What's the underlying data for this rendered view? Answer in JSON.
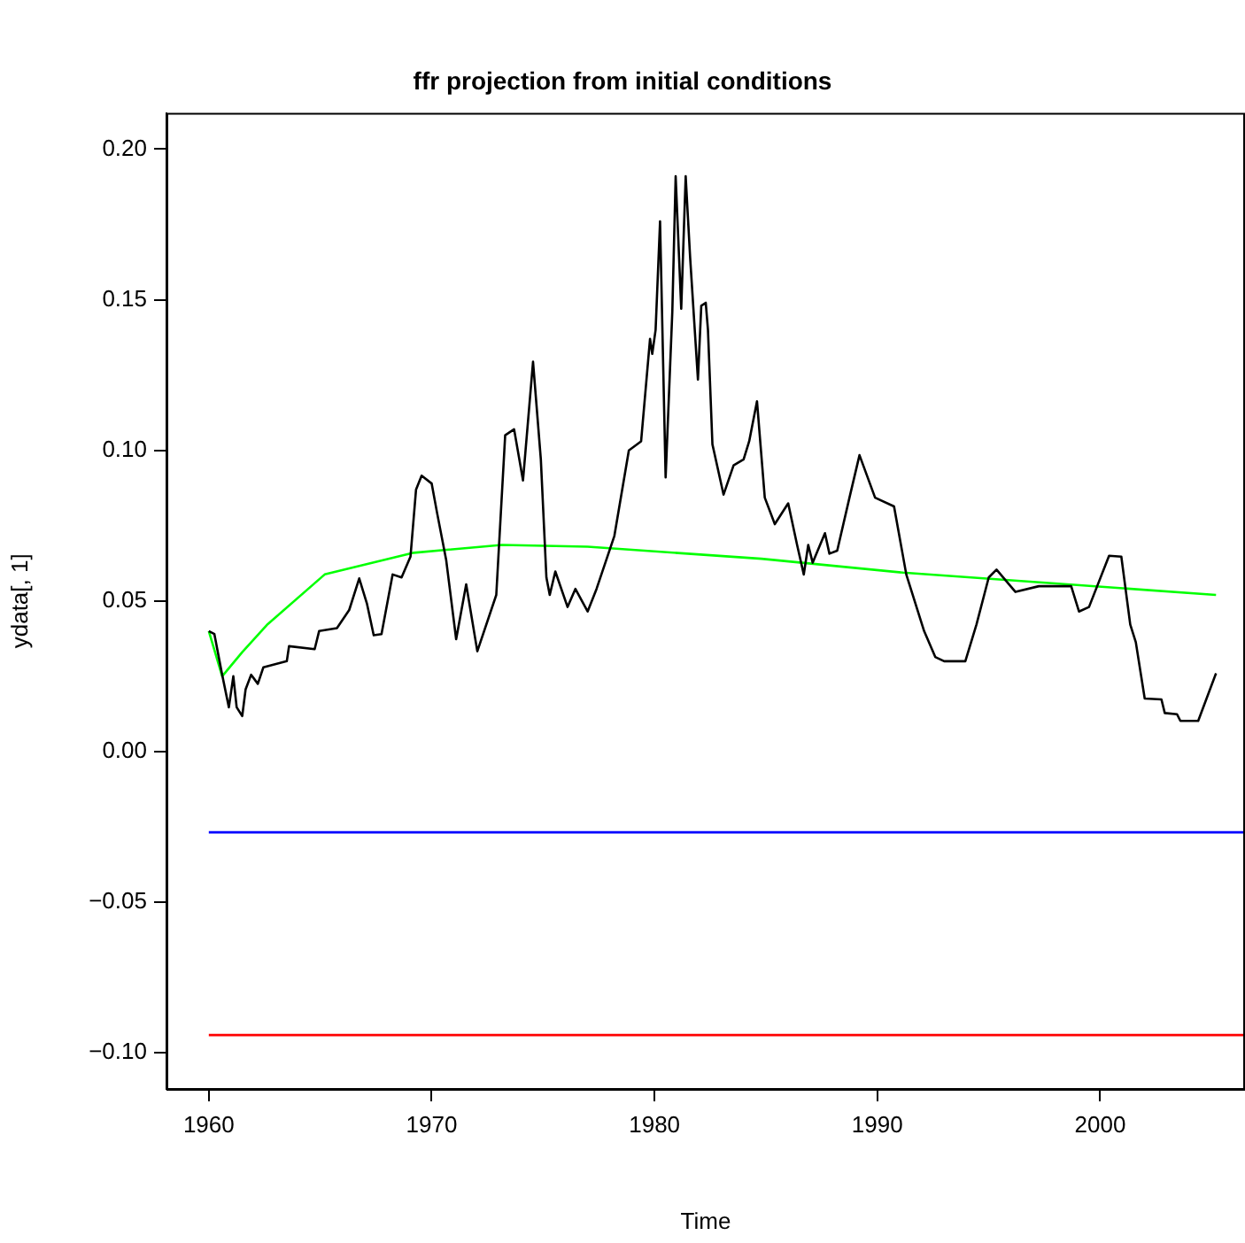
{
  "chart_data": {
    "type": "line",
    "title": "ffr projection from initial conditions",
    "xlabel": "Time",
    "ylabel": "ydata[, 1]",
    "xlim": [
      1958.1,
      2006.5
    ],
    "xticks": [
      1960,
      1970,
      1980,
      1990,
      2000
    ],
    "ylim": [
      -0.112,
      0.212
    ],
    "yticks": [
      {
        "value": -0.1,
        "label": "−0.10"
      },
      {
        "value": -0.05,
        "label": "−0.05"
      },
      {
        "value": 0,
        "label": "0.00"
      },
      {
        "value": 0.05,
        "label": "0.05"
      },
      {
        "value": 0.1,
        "label": "0.10"
      },
      {
        "value": 0.15,
        "label": "0.15"
      },
      {
        "value": 0.2,
        "label": "0.20"
      }
    ],
    "grid": false,
    "legend": false,
    "marker": "none",
    "line_style": "solid",
    "series": [
      {
        "color": "#000000",
        "x": [
          1960.0,
          1960.25,
          1960.6,
          1960.9,
          1961.1,
          1961.25,
          1961.5,
          1961.65,
          1961.9,
          1962.2,
          1962.45,
          1963.5,
          1963.6,
          1964.75,
          1964.95,
          1965.75,
          1966.3,
          1966.75,
          1967.1,
          1967.4,
          1967.75,
          1968.25,
          1968.65,
          1969.05,
          1969.3,
          1969.55,
          1970.0,
          1970.25,
          1970.65,
          1971.1,
          1971.55,
          1972.05,
          1972.9,
          1973.3,
          1973.7,
          1974.1,
          1974.55,
          1974.9,
          1975.15,
          1975.3,
          1975.55,
          1976.1,
          1976.45,
          1977.0,
          1977.4,
          1978.2,
          1978.85,
          1979.4,
          1979.8,
          1979.9,
          1980.05,
          1980.25,
          1980.5,
          1980.8,
          1980.95,
          1981.2,
          1981.4,
          1981.6,
          1981.95,
          1982.1,
          1982.3,
          1982.4,
          1982.6,
          1983.1,
          1983.55,
          1984.0,
          1984.25,
          1984.6,
          1984.95,
          1985.4,
          1986.0,
          1986.4,
          1986.7,
          1986.9,
          1987.1,
          1987.65,
          1987.85,
          1988.2,
          1988.75,
          1989.2,
          1989.9,
          1990.75,
          1991.3,
          1992.1,
          1992.6,
          1993.0,
          1993.95,
          1994.45,
          1995.0,
          1995.35,
          1996.2,
          1997.25,
          1998.7,
          1999.05,
          1999.5,
          2000.4,
          2000.95,
          2001.35,
          2001.6,
          2002.0,
          2002.75,
          2002.9,
          2003.45,
          2003.6,
          2004.4,
          2005.2
        ],
        "values": [
          0.04,
          0.039,
          0.0255,
          0.0147,
          0.025,
          0.0147,
          0.0118,
          0.0206,
          0.0255,
          0.0225,
          0.028,
          0.03,
          0.035,
          0.034,
          0.04,
          0.041,
          0.047,
          0.0575,
          0.049,
          0.0386,
          0.039,
          0.0588,
          0.0578,
          0.0647,
          0.087,
          0.0916,
          0.089,
          0.079,
          0.0637,
          0.0373,
          0.0555,
          0.0333,
          0.052,
          0.105,
          0.107,
          0.09,
          0.1294,
          0.097,
          0.0578,
          0.052,
          0.0598,
          0.048,
          0.054,
          0.0465,
          0.054,
          0.0716,
          0.1,
          0.103,
          0.137,
          0.132,
          0.14,
          0.176,
          0.091,
          0.146,
          0.191,
          0.147,
          0.191,
          0.164,
          0.1235,
          0.148,
          0.149,
          0.14,
          0.102,
          0.0853,
          0.095,
          0.097,
          0.103,
          0.1163,
          0.0843,
          0.0755,
          0.0824,
          0.0686,
          0.0588,
          0.0686,
          0.0627,
          0.0725,
          0.0657,
          0.0667,
          0.0843,
          0.0984,
          0.0843,
          0.0814,
          0.0588,
          0.04,
          0.0314,
          0.03,
          0.03,
          0.0422,
          0.0578,
          0.0604,
          0.053,
          0.0549,
          0.0549,
          0.0465,
          0.048,
          0.065,
          0.0647,
          0.0422,
          0.0363,
          0.0176,
          0.0173,
          0.0128,
          0.0124,
          0.0102,
          0.0102,
          0.026
        ]
      },
      {
        "color": "#00ff00",
        "x": [
          1960.0,
          1960.6,
          1961.5,
          1962.6,
          1965.2,
          1969.2,
          1973.15,
          1977.0,
          1984.8,
          1991.15,
          2005.2
        ],
        "values": [
          0.04,
          0.025,
          0.033,
          0.042,
          0.0588,
          0.066,
          0.0686,
          0.068,
          0.064,
          0.0594,
          0.052
        ]
      },
      {
        "color": "#0000ff",
        "x": [
          1960.0,
          2006.5
        ],
        "values": [
          -0.0268,
          -0.0268
        ]
      },
      {
        "color": "#ff0000",
        "x": [
          1960.0,
          2006.5
        ],
        "values": [
          -0.0941,
          -0.0941
        ]
      }
    ]
  }
}
